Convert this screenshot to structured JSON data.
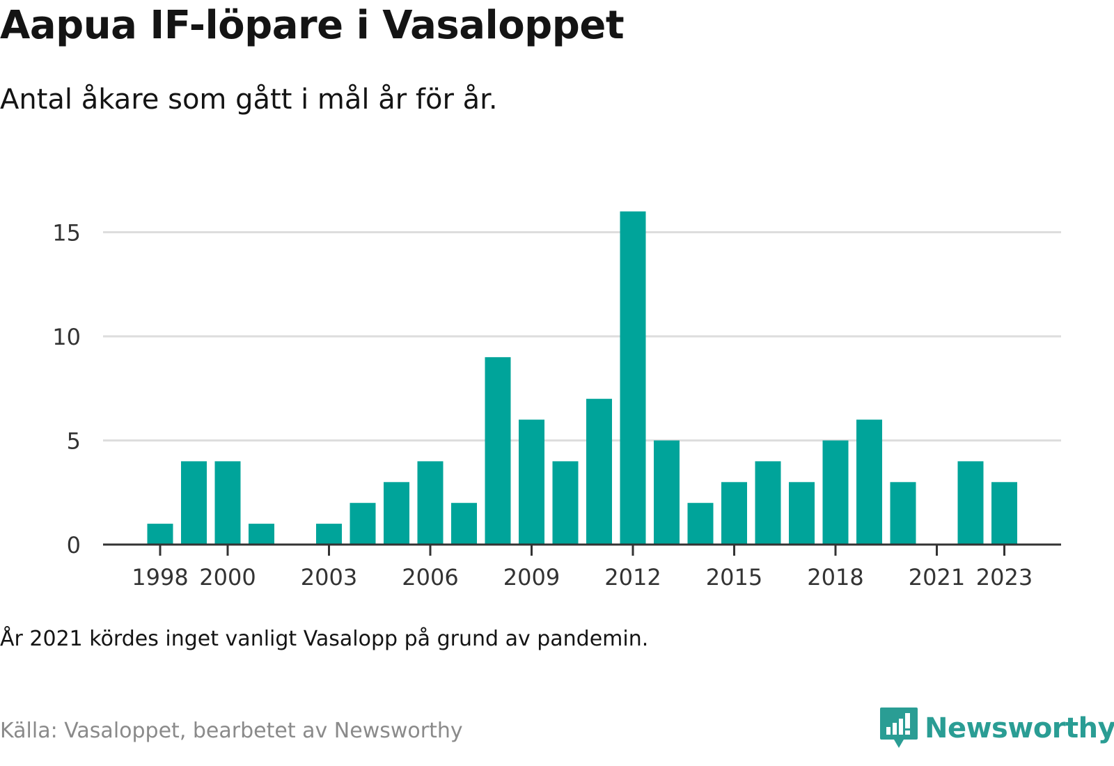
{
  "header": {
    "title": "Aapua IF-löpare i Vasaloppet",
    "subtitle": "Antal åkare som gått i mål år för år."
  },
  "footer": {
    "note": "År 2021 kördes inget vanligt Vasalopp på grund av pandemin.",
    "source": "Källa: Vasaloppet, bearbetet av Newsworthy",
    "logo_text": "Newsworthy",
    "logo_icon": "bar-chart-speech-bubble-icon"
  },
  "colors": {
    "bar": "#00a49a",
    "grid": "#dddddd",
    "axis": "#333333",
    "logo": "#2a9d94"
  },
  "chart_data": {
    "type": "bar",
    "categories": [
      1997,
      1998,
      1999,
      2000,
      2001,
      2002,
      2003,
      2004,
      2005,
      2006,
      2007,
      2008,
      2009,
      2010,
      2011,
      2012,
      2013,
      2014,
      2015,
      2016,
      2017,
      2018,
      2019,
      2020,
      2021,
      2022,
      2023
    ],
    "values": [
      0,
      1,
      4,
      4,
      1,
      0,
      1,
      2,
      3,
      4,
      2,
      9,
      6,
      4,
      7,
      16,
      5,
      2,
      3,
      4,
      3,
      5,
      6,
      3,
      0,
      4,
      3
    ],
    "x_ticks": [
      1998,
      2000,
      2003,
      2006,
      2009,
      2012,
      2015,
      2018,
      2021,
      2023
    ],
    "y_ticks": [
      0,
      5,
      10,
      15
    ],
    "ylim": [
      0,
      16
    ],
    "grid": true,
    "legend": "none"
  }
}
